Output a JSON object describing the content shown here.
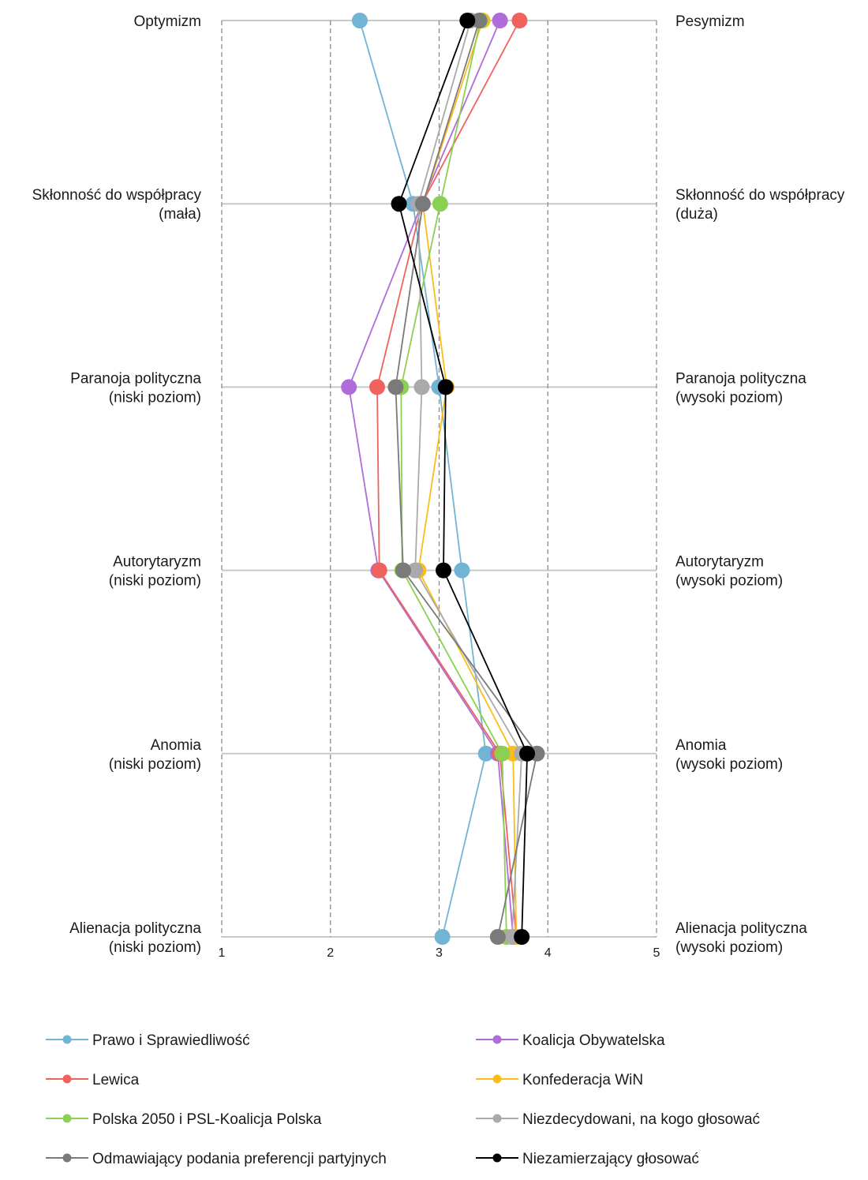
{
  "chart_data": {
    "type": "line",
    "orientation": "horizontal-value-axis",
    "xlim": [
      1,
      5
    ],
    "x_ticks": [
      "1",
      "2",
      "3",
      "4",
      "5"
    ],
    "grid": true,
    "legend_position": "bottom",
    "categories": [
      {
        "left": [
          "Optymizm"
        ],
        "right": [
          "Pesymizm"
        ]
      },
      {
        "left": [
          "Skłonność do współpracy",
          "(mała)"
        ],
        "right": [
          "Skłonność do współpracy",
          "(duża)"
        ]
      },
      {
        "left": [
          "Paranoja polityczna",
          "(niski poziom)"
        ],
        "right": [
          "Paranoja polityczna",
          "(wysoki poziom)"
        ]
      },
      {
        "left": [
          "Autorytaryzm",
          "(niski poziom)"
        ],
        "right": [
          "Autorytaryzm",
          "(wysoki poziom)"
        ]
      },
      {
        "left": [
          "Anomia",
          "(niski poziom)"
        ],
        "right": [
          "Anomia",
          "(wysoki poziom)"
        ]
      },
      {
        "left": [
          "Alienacja polityczna",
          "(niski poziom)"
        ],
        "right": [
          "Alienacja polityczna",
          "(wysoki poziom)"
        ]
      }
    ],
    "series": [
      {
        "name": "Prawo i Sprawiedliwość",
        "color": "#72b4d4",
        "values": [
          2.27,
          2.76,
          3.0,
          3.21,
          3.43,
          3.03
        ]
      },
      {
        "name": "Koalicja Obywatelska",
        "color": "#b06cd8",
        "values": [
          3.56,
          2.84,
          2.17,
          2.44,
          3.54,
          3.68
        ]
      },
      {
        "name": "Lewica",
        "color": "#f0625e",
        "values": [
          3.74,
          2.84,
          2.43,
          2.45,
          3.56,
          3.71
        ]
      },
      {
        "name": "Konfederacja WiN",
        "color": "#fbbd1a",
        "values": [
          3.4,
          2.85,
          3.07,
          2.81,
          3.68,
          3.71
        ]
      },
      {
        "name": "Polska 2050 i PSL-Koalicja Polska",
        "color": "#8bd052",
        "values": [
          3.38,
          3.01,
          2.65,
          2.66,
          3.58,
          3.62
        ]
      },
      {
        "name": "Niezdecydowani, na kogo głosować",
        "color": "#aaaaaa",
        "values": [
          3.29,
          2.81,
          2.84,
          2.78,
          3.76,
          3.67
        ]
      },
      {
        "name": "Odmawiający podania preferencji partyjnych",
        "color": "#7a7a7a",
        "values": [
          3.37,
          2.85,
          2.6,
          2.67,
          3.9,
          3.54
        ]
      },
      {
        "name": "Niezamierzający głosować",
        "color": "#000000",
        "values": [
          3.26,
          2.63,
          3.06,
          3.04,
          3.81,
          3.76
        ]
      }
    ]
  }
}
